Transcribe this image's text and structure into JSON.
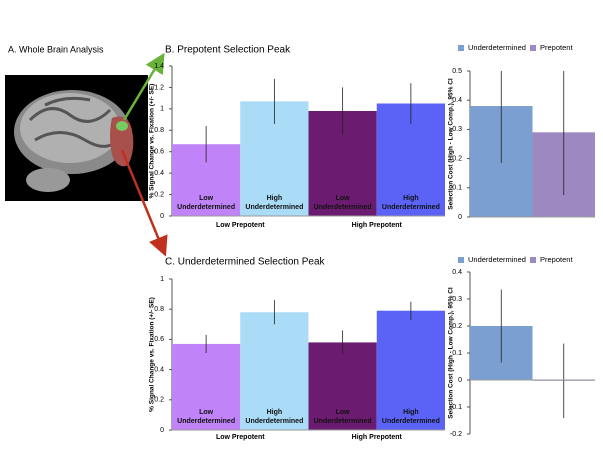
{
  "panel_a_title": "A. Whole Brain Analysis",
  "chart_data": [
    {
      "type": "bar",
      "title": "B. Prepotent Selection Peak",
      "y_label": "% Signal Change vs. Fixation (+/- SE)",
      "categories": [
        "Low Underdetermined",
        "High Underdetermined",
        "Low Underdetermined",
        "High Underdetermined"
      ],
      "groups": [
        "Low Prepotent",
        "High Prepotent"
      ],
      "values": [
        0.67,
        1.07,
        0.98,
        1.05
      ],
      "errors": [
        0.17,
        0.21,
        0.22,
        0.19
      ],
      "colors": [
        "#c184f8",
        "#aadcf8",
        "#6b1b70",
        "#5a63f6"
      ],
      "ylim": [
        0,
        1.4
      ],
      "yticks": [
        0,
        0.2,
        0.4,
        0.6,
        0.8,
        1,
        1.2,
        1.4
      ]
    },
    {
      "type": "bar",
      "y_label": "Selection Cost (High - Low Comp.), 95% CI",
      "series": [
        {
          "name": "Underdetermined",
          "color": "#7c9fd2",
          "values": [
            0.38
          ],
          "errors": [
            0.195
          ]
        },
        {
          "name": "Prepotent",
          "color": "#9d88c2",
          "values": [
            0.29
          ],
          "errors": [
            0.215
          ]
        }
      ],
      "ylim": [
        0,
        0.5
      ],
      "yticks": [
        0,
        0.1,
        0.2,
        0.3,
        0.4,
        0.5
      ]
    },
    {
      "type": "bar",
      "title": "C. Underdetermined Selection Peak",
      "y_label": "% Signal Change vs. Fixation (+/- SE)",
      "categories": [
        "Low Underdetermined",
        "High Underdetermined",
        "Low Underdetermined",
        "High Underdetermined"
      ],
      "groups": [
        "Low Prepotent",
        "High Prepotent"
      ],
      "values": [
        0.57,
        0.78,
        0.58,
        0.79
      ],
      "errors": [
        0.06,
        0.08,
        0.08,
        0.06
      ],
      "colors": [
        "#c184f8",
        "#aadcf8",
        "#6b1b70",
        "#5a63f6"
      ],
      "ylim": [
        0,
        1
      ],
      "yticks": [
        0,
        0.2,
        0.4,
        0.6,
        0.8,
        1
      ]
    },
    {
      "type": "bar",
      "y_label": "Selection Cost (High - Low Comp.), 95% CI",
      "series": [
        {
          "name": "Underdetermined",
          "color": "#7c9fd2",
          "values": [
            0.2
          ],
          "errors": [
            0.135
          ]
        },
        {
          "name": "Prepotent",
          "color": "#9d88c2",
          "values": [
            -0.003
          ],
          "errors": [
            0.138
          ]
        }
      ],
      "ylim": [
        -0.2,
        0.4
      ],
      "yticks": [
        -0.2,
        -0.1,
        0,
        0.1,
        0.2,
        0.3,
        0.4
      ]
    }
  ]
}
